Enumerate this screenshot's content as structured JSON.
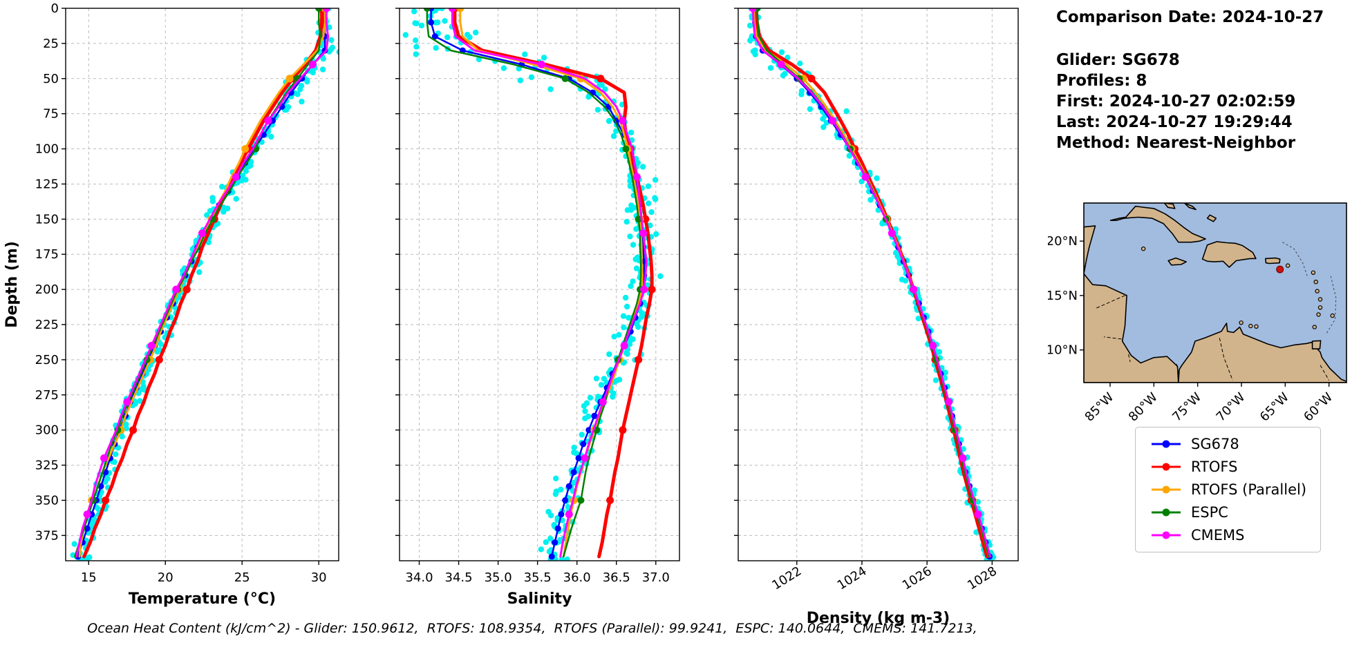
{
  "info_panel": {
    "title": "Comparison Date: 2024-10-27",
    "lines": [
      "Glider: SG678",
      "Profiles: 8",
      "First: 2024-10-27 02:02:59",
      "Last: 2024-10-27 19:29:44",
      "Method: Nearest-Neighbor"
    ]
  },
  "legend": {
    "entries": [
      {
        "label": "SG678",
        "color": "#0000ff"
      },
      {
        "label": "RTOFS",
        "color": "#ff0000"
      },
      {
        "label": "RTOFS (Parallel)",
        "color": "#ffa500"
      },
      {
        "label": "ESPC",
        "color": "#008000"
      },
      {
        "label": "CMEMS",
        "color": "#ff00ff"
      }
    ]
  },
  "footer": {
    "text": "Ocean Heat Content (kJ/cm^2) - Glider: 150.9612,  RTOFS: 108.9354,  RTOFS (Parallel): 99.9241,  ESPC: 140.0644,  CMEMS: 141.7213,"
  },
  "map": {
    "extent": {
      "lon_min": -88,
      "lon_max": -58,
      "lat_min": 7,
      "lat_max": 23.5
    },
    "ocean_color": "#a2bcdf",
    "land_color": "#d2b48c",
    "marker": {
      "lon": -65.6,
      "lat": 17.4,
      "color": "#cc1111"
    },
    "lat_ticks": [
      {
        "value": 20,
        "label": "20°N"
      },
      {
        "value": 15,
        "label": "15°N"
      },
      {
        "value": 10,
        "label": "10°N"
      }
    ],
    "lon_ticks": [
      {
        "value": -85,
        "label": "85°W"
      },
      {
        "value": -80,
        "label": "80°W"
      },
      {
        "value": -75,
        "label": "75°W"
      },
      {
        "value": -70,
        "label": "70°W"
      },
      {
        "value": -65,
        "label": "65°W"
      },
      {
        "value": -60,
        "label": "60°W"
      }
    ]
  },
  "chart_data": {
    "type": "line",
    "profile_orientation": "depth-vertical",
    "ylabel": "Depth (m)",
    "ylim": [
      0,
      393
    ],
    "yticks": [
      0,
      25,
      50,
      75,
      100,
      125,
      150,
      175,
      200,
      225,
      250,
      275,
      300,
      325,
      350,
      375
    ],
    "depths": [
      0,
      10,
      20,
      30,
      40,
      50,
      60,
      70,
      80,
      90,
      100,
      110,
      120,
      130,
      140,
      150,
      160,
      170,
      180,
      190,
      200,
      210,
      220,
      230,
      240,
      250,
      260,
      270,
      280,
      290,
      300,
      310,
      320,
      330,
      340,
      350,
      360,
      370,
      380,
      390
    ],
    "series_styles": [
      {
        "name": "SG678",
        "color": "#0000ff",
        "linewidth": 2.5,
        "marker_every": 1,
        "marker_size": 4.5
      },
      {
        "name": "RTOFS",
        "color": "#ff0000",
        "linewidth": 5,
        "marker_every": 5,
        "marker_size": 5.5
      },
      {
        "name": "RTOFS (Parallel)",
        "color": "#ffa500",
        "linewidth": 3,
        "marker_every": 5,
        "marker_size": 5.5
      },
      {
        "name": "ESPC",
        "color": "#008000",
        "linewidth": 2.5,
        "marker_every": 5,
        "marker_size": 5
      },
      {
        "name": "CMEMS",
        "color": "#ff00ff",
        "linewidth": 3,
        "marker_every": 4,
        "marker_size": 5.5
      }
    ],
    "scatter": {
      "name": "glider raw profiles",
      "color": "#00f0f0",
      "profiles": 8,
      "marker_size": 4.2
    },
    "panels": [
      {
        "id": "temperature",
        "xlabel": "Temperature (°C)",
        "xlim": [
          13.5,
          31.3
        ],
        "xticks": [
          15,
          20,
          25,
          30
        ],
        "xtick_labels": [
          "15",
          "20",
          "25",
          "30"
        ],
        "rotate_xticklabels": false,
        "series": {
          "SG678": [
            30.3,
            30.3,
            30.4,
            30.4,
            29.6,
            28.9,
            28.2,
            27.6,
            27.0,
            26.4,
            25.8,
            25.2,
            24.7,
            24.1,
            23.5,
            23.0,
            22.5,
            22.1,
            21.7,
            21.3,
            20.9,
            20.5,
            20.1,
            19.7,
            19.3,
            18.9,
            18.5,
            18.1,
            17.7,
            17.4,
            17.0,
            16.7,
            16.4,
            16.1,
            15.8,
            15.5,
            15.2,
            14.9,
            14.6,
            14.3
          ],
          "RTOFS": [
            30.2,
            30.2,
            30.1,
            29.8,
            29.1,
            28.3,
            27.6,
            27.0,
            26.4,
            25.9,
            25.4,
            24.9,
            24.5,
            24.0,
            23.6,
            23.2,
            22.8,
            22.4,
            22.1,
            21.7,
            21.4,
            21.0,
            20.7,
            20.3,
            20.0,
            19.6,
            19.3,
            18.9,
            18.6,
            18.2,
            17.9,
            17.5,
            17.2,
            16.8,
            16.5,
            16.1,
            15.8,
            15.4,
            15.1,
            14.7
          ],
          "RTOFS (Parallel)": [
            30.4,
            30.4,
            30.3,
            29.9,
            29.0,
            28.1,
            27.4,
            26.8,
            26.2,
            25.7,
            25.2,
            24.8,
            24.3,
            23.9,
            23.4,
            23.0,
            22.5,
            22.1,
            21.7,
            21.3,
            20.9,
            20.5,
            20.1,
            19.7,
            19.4,
            19.0,
            18.6,
            18.2,
            17.8,
            17.4,
            17.1,
            16.7,
            16.3,
            15.9,
            15.6,
            15.2,
            14.9,
            14.7,
            14.5,
            14.4
          ],
          "ESPC": [
            30.0,
            30.0,
            30.1,
            30.0,
            29.3,
            28.6,
            27.9,
            27.3,
            26.7,
            26.2,
            25.9,
            25.3,
            24.7,
            24.2,
            23.6,
            23.1,
            22.6,
            22.2,
            21.7,
            21.3,
            20.8,
            20.4,
            20.0,
            19.6,
            19.2,
            18.8,
            18.4,
            18.0,
            17.6,
            17.2,
            16.9,
            16.5,
            16.2,
            15.9,
            15.6,
            15.3,
            15.0,
            14.7,
            14.4,
            14.1
          ],
          "CMEMS": [
            30.5,
            30.5,
            30.6,
            30.5,
            29.6,
            28.8,
            28.0,
            27.4,
            26.7,
            26.2,
            25.7,
            25.1,
            24.6,
            24.0,
            23.4,
            22.9,
            22.4,
            22.0,
            21.6,
            21.2,
            20.7,
            20.3,
            19.9,
            19.5,
            19.1,
            18.7,
            18.3,
            17.9,
            17.5,
            17.1,
            16.8,
            16.4,
            16.0,
            15.7,
            15.4,
            15.2,
            14.9,
            14.6,
            14.4,
            14.2
          ]
        }
      },
      {
        "id": "salinity",
        "xlabel": "Salinity",
        "xlim": [
          33.75,
          37.3
        ],
        "xticks": [
          34.0,
          34.5,
          35.0,
          35.5,
          36.0,
          36.5,
          37.0
        ],
        "xtick_labels": [
          "34.0",
          "34.5",
          "35.0",
          "35.5",
          "36.0",
          "36.5",
          "37.0"
        ],
        "rotate_xticklabels": false,
        "series": {
          "SG678": [
            34.15,
            34.15,
            34.2,
            34.55,
            35.3,
            35.9,
            36.2,
            36.4,
            36.5,
            36.6,
            36.65,
            36.7,
            36.73,
            36.76,
            36.79,
            36.81,
            36.83,
            36.84,
            36.85,
            36.85,
            36.85,
            36.8,
            36.74,
            36.68,
            36.6,
            36.52,
            36.45,
            36.38,
            36.3,
            36.22,
            36.15,
            36.08,
            36.02,
            35.96,
            35.9,
            35.85,
            35.8,
            35.76,
            35.72,
            35.68
          ],
          "RTOFS": [
            34.45,
            34.45,
            34.5,
            34.8,
            35.6,
            36.3,
            36.6,
            36.62,
            36.6,
            36.62,
            36.68,
            36.72,
            36.76,
            36.8,
            36.84,
            36.87,
            36.9,
            36.92,
            36.94,
            36.95,
            36.95,
            36.92,
            36.88,
            36.85,
            36.82,
            36.78,
            36.74,
            36.7,
            36.66,
            36.62,
            36.58,
            36.55,
            36.52,
            36.48,
            36.45,
            36.42,
            36.38,
            36.35,
            36.32,
            36.28
          ],
          "RTOFS (Parallel)": [
            34.52,
            34.52,
            34.55,
            34.75,
            35.45,
            36.05,
            36.3,
            36.45,
            36.55,
            36.6,
            36.65,
            36.68,
            36.72,
            36.75,
            36.78,
            36.8,
            36.81,
            36.82,
            36.82,
            36.83,
            36.82,
            36.78,
            36.72,
            36.65,
            36.6,
            36.54,
            36.48,
            36.42,
            36.35,
            36.28,
            36.22,
            36.16,
            36.1,
            36.05,
            36.0,
            35.96,
            35.92,
            35.89,
            35.86,
            35.83
          ],
          "ESPC": [
            34.1,
            34.1,
            34.12,
            34.4,
            35.2,
            35.85,
            36.15,
            36.35,
            36.48,
            36.56,
            36.62,
            36.66,
            36.7,
            36.73,
            36.76,
            36.78,
            36.8,
            36.8,
            36.81,
            36.81,
            36.8,
            36.76,
            36.7,
            36.64,
            36.58,
            36.52,
            36.46,
            36.4,
            36.36,
            36.3,
            36.25,
            36.2,
            36.15,
            36.11,
            36.08,
            36.05,
            35.99,
            35.93,
            35.88,
            35.83
          ],
          "CMEMS": [
            34.42,
            34.42,
            34.46,
            34.7,
            35.55,
            36.1,
            36.35,
            36.5,
            36.58,
            36.64,
            36.7,
            36.73,
            36.76,
            36.78,
            36.8,
            36.82,
            36.84,
            36.86,
            36.88,
            36.87,
            36.85,
            36.8,
            36.73,
            36.66,
            36.6,
            36.53,
            36.46,
            36.4,
            36.33,
            36.27,
            36.21,
            36.15,
            36.1,
            36.04,
            35.99,
            35.95,
            35.9,
            35.86,
            35.82,
            35.79
          ]
        }
      },
      {
        "id": "density",
        "xlabel": "Density (kg m-3)",
        "xlim": [
          1020.2,
          1028.8
        ],
        "xticks": [
          1022,
          1024,
          1026,
          1028
        ],
        "xtick_labels": [
          "1022",
          "1024",
          "1026",
          "1028"
        ],
        "rotate_xticklabels": true,
        "series": {
          "SG678": [
            1020.7,
            1020.72,
            1020.75,
            1020.95,
            1021.5,
            1022.0,
            1022.4,
            1022.75,
            1023.05,
            1023.35,
            1023.62,
            1023.88,
            1024.12,
            1024.34,
            1024.55,
            1024.75,
            1024.94,
            1025.12,
            1025.28,
            1025.44,
            1025.6,
            1025.75,
            1025.9,
            1026.04,
            1026.17,
            1026.3,
            1026.42,
            1026.54,
            1026.66,
            1026.77,
            1026.88,
            1026.98,
            1027.08,
            1027.18,
            1027.3,
            1027.42,
            1027.55,
            1027.68,
            1027.8,
            1027.92
          ],
          "RTOFS": [
            1020.75,
            1020.78,
            1020.85,
            1021.15,
            1021.85,
            1022.45,
            1022.85,
            1023.1,
            1023.35,
            1023.58,
            1023.78,
            1024.0,
            1024.2,
            1024.4,
            1024.6,
            1024.78,
            1024.96,
            1025.13,
            1025.29,
            1025.45,
            1025.58,
            1025.72,
            1025.86,
            1026.0,
            1026.13,
            1026.25,
            1026.37,
            1026.49,
            1026.6,
            1026.71,
            1026.82,
            1026.92,
            1027.02,
            1027.12,
            1027.24,
            1027.36,
            1027.48,
            1027.6,
            1027.72,
            1027.84
          ],
          "RTOFS (Parallel)": [
            1020.68,
            1020.7,
            1020.76,
            1021.05,
            1021.68,
            1022.2,
            1022.58,
            1022.9,
            1023.18,
            1023.45,
            1023.68,
            1023.92,
            1024.15,
            1024.36,
            1024.56,
            1024.76,
            1024.95,
            1025.12,
            1025.28,
            1025.44,
            1025.59,
            1025.74,
            1025.89,
            1026.03,
            1026.16,
            1026.29,
            1026.41,
            1026.53,
            1026.65,
            1026.76,
            1026.87,
            1026.97,
            1027.07,
            1027.17,
            1027.29,
            1027.41,
            1027.54,
            1027.66,
            1027.78,
            1027.9
          ],
          "ESPC": [
            1020.78,
            1020.8,
            1020.84,
            1021.08,
            1021.58,
            1022.08,
            1022.48,
            1022.82,
            1023.12,
            1023.4,
            1023.64,
            1023.89,
            1024.13,
            1024.34,
            1024.54,
            1024.74,
            1024.93,
            1025.1,
            1025.26,
            1025.42,
            1025.58,
            1025.73,
            1025.88,
            1026.02,
            1026.15,
            1026.28,
            1026.4,
            1026.52,
            1026.64,
            1026.75,
            1026.86,
            1026.96,
            1027.06,
            1027.16,
            1027.28,
            1027.4,
            1027.53,
            1027.66,
            1027.78,
            1027.9
          ],
          "CMEMS": [
            1020.65,
            1020.67,
            1020.71,
            1020.95,
            1021.52,
            1022.04,
            1022.45,
            1022.8,
            1023.1,
            1023.38,
            1023.62,
            1023.87,
            1024.11,
            1024.32,
            1024.53,
            1024.73,
            1024.92,
            1025.1,
            1025.27,
            1025.43,
            1025.59,
            1025.75,
            1025.9,
            1026.05,
            1026.18,
            1026.31,
            1026.43,
            1026.55,
            1026.67,
            1026.78,
            1026.89,
            1027.0,
            1027.1,
            1027.2,
            1027.32,
            1027.44,
            1027.57,
            1027.7,
            1027.82,
            1027.94
          ]
        }
      }
    ]
  }
}
